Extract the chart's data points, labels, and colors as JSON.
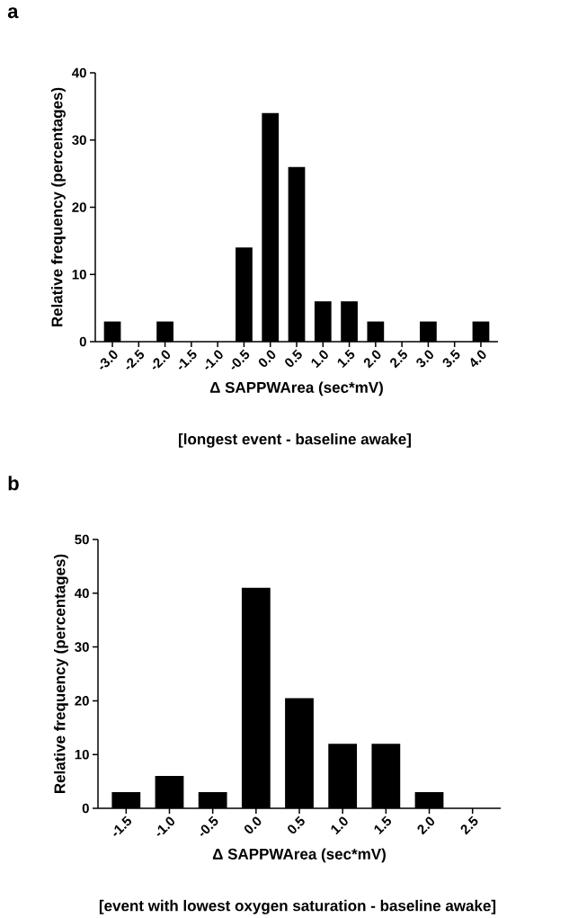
{
  "chart_data": [
    {
      "type": "bar",
      "categories": [
        "-3.0",
        "-2.5",
        "-2.0",
        "-1.5",
        "-1.0",
        "-0.5",
        "0.0",
        "0.5",
        "1.0",
        "1.5",
        "2.0",
        "2.5",
        "3.0",
        "3.5",
        "4.0"
      ],
      "values": [
        3,
        0,
        3,
        0,
        0,
        14,
        34,
        26,
        6,
        6,
        3,
        0,
        3,
        0,
        3
      ],
      "color": "#000000",
      "ylim": [
        0,
        40
      ],
      "yticks": [
        0,
        10,
        20,
        30,
        40
      ],
      "xlabel": "Δ SAPPWArea (sec*mV)",
      "ylabel": "Relative frequency (percentages)",
      "annotations": [
        "a",
        "[longest event - baseline awake]"
      ]
    },
    {
      "type": "bar",
      "categories": [
        "-1.5",
        "-1.0",
        "-0.5",
        "0.0",
        "0.5",
        "1.0",
        "1.5",
        "2.0",
        "2.5"
      ],
      "values": [
        3,
        6,
        3,
        41,
        20.5,
        12,
        12,
        3,
        0
      ],
      "color": "#000000",
      "ylim": [
        0,
        50
      ],
      "yticks": [
        0,
        10,
        20,
        30,
        40,
        50
      ],
      "xlabel": "Δ SAPPWArea (sec*mV)",
      "ylabel": "Relative frequency (percentages)",
      "annotations": [
        "b",
        "[event with lowest oxygen saturation - baseline awake]"
      ]
    }
  ]
}
